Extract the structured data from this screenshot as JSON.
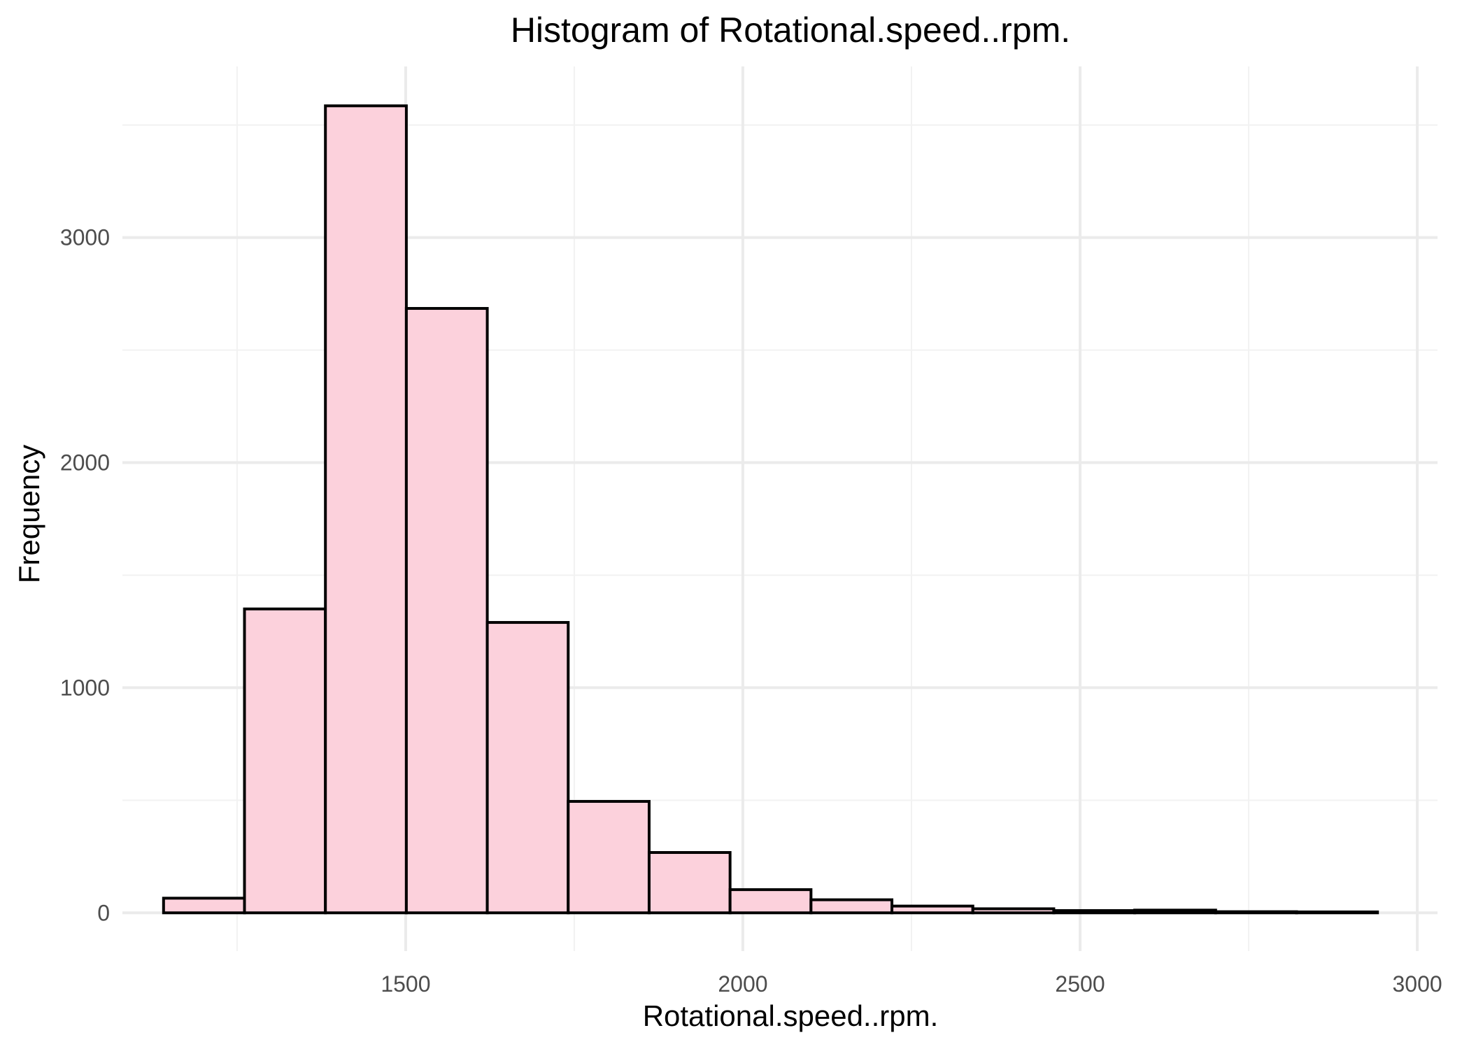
{
  "chart_data": {
    "type": "bar",
    "title": "Histogram of Rotational.speed..rpm.",
    "xlabel": "Rotational.speed..rpm.",
    "ylabel": "Frequency",
    "xlim": [
      1080,
      3030
    ],
    "ylim": [
      -170,
      3760
    ],
    "x_ticks": [
      1500,
      2000,
      2500,
      3000
    ],
    "x_tick_labels": [
      "1500",
      "2000",
      "2500",
      "3000"
    ],
    "x_minor_ticks": [
      1250,
      1750,
      2250,
      2750
    ],
    "y_ticks": [
      0,
      1000,
      2000,
      3000
    ],
    "y_tick_labels": [
      "0",
      "1000",
      "2000",
      "3000"
    ],
    "y_minor_ticks": [
      500,
      1500,
      2500,
      3500
    ],
    "grid": true,
    "bar_fill": "#fcd1dc",
    "bar_outline": "#000000",
    "bins": [
      {
        "x0": 1141,
        "x1": 1261,
        "count": 65
      },
      {
        "x0": 1261,
        "x1": 1381,
        "count": 1350
      },
      {
        "x0": 1381,
        "x1": 1501,
        "count": 3585
      },
      {
        "x0": 1501,
        "x1": 1621,
        "count": 2685
      },
      {
        "x0": 1621,
        "x1": 1741,
        "count": 1290
      },
      {
        "x0": 1741,
        "x1": 1861,
        "count": 495
      },
      {
        "x0": 1861,
        "x1": 1981,
        "count": 268
      },
      {
        "x0": 1981,
        "x1": 2101,
        "count": 103
      },
      {
        "x0": 2101,
        "x1": 2221,
        "count": 58
      },
      {
        "x0": 2221,
        "x1": 2341,
        "count": 30
      },
      {
        "x0": 2341,
        "x1": 2461,
        "count": 18
      },
      {
        "x0": 2461,
        "x1": 2581,
        "count": 10
      },
      {
        "x0": 2581,
        "x1": 2701,
        "count": 12
      },
      {
        "x0": 2701,
        "x1": 2821,
        "count": 5
      },
      {
        "x0": 2821,
        "x1": 2941,
        "count": 4
      }
    ]
  }
}
